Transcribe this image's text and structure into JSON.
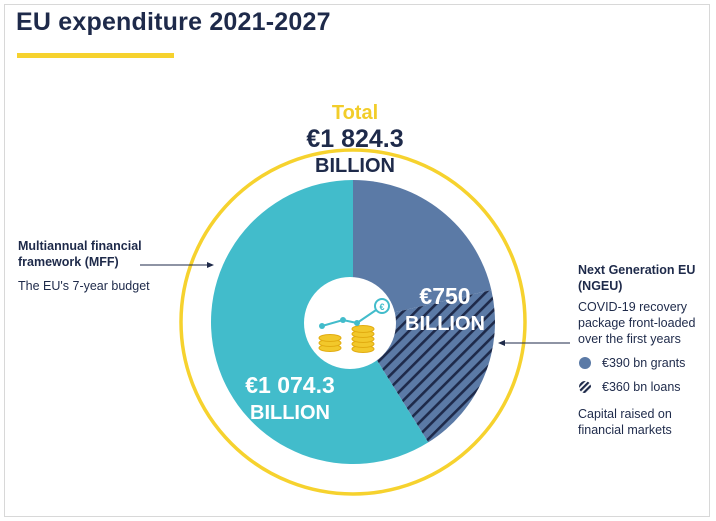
{
  "title": "EU expenditure 2021-2027",
  "total": {
    "label": "Total",
    "value": "€1 824.3",
    "unit": "BILLION"
  },
  "mff": {
    "heading": "Multiannual financial framework (MFF)",
    "sub": "The EU's 7-year budget",
    "value_line1": "€1 074.3",
    "value_line2": "BILLION"
  },
  "ngeu": {
    "heading": "Next Generation EU (NGEU)",
    "sub": "COVID-19 recovery package front-loaded over the first years",
    "value_line1": "€750",
    "value_line2": "BILLION",
    "legend": [
      {
        "label": "€390 bn grants",
        "style": "solid"
      },
      {
        "label": "€360 bn loans",
        "style": "hatched"
      }
    ],
    "capital_note": "Capital raised on financial markets"
  },
  "colors": {
    "mff": "#42bccb",
    "ngeu_grants": "#5b7aa6",
    "ngeu_loans_hatch": "#1e2a4a",
    "total_ring": "#f6d22e",
    "title": "#1e2a4a"
  },
  "chart_data": {
    "type": "pie",
    "title": "EU expenditure 2021-2027",
    "unit": "€ billion",
    "total": 1824.3,
    "slices": [
      {
        "name": "Next Generation EU (NGEU) grants",
        "value": 390
      },
      {
        "name": "Next Generation EU (NGEU) loans",
        "value": 360
      },
      {
        "name": "Multiannual financial framework (MFF)",
        "value": 1074.3
      }
    ]
  }
}
